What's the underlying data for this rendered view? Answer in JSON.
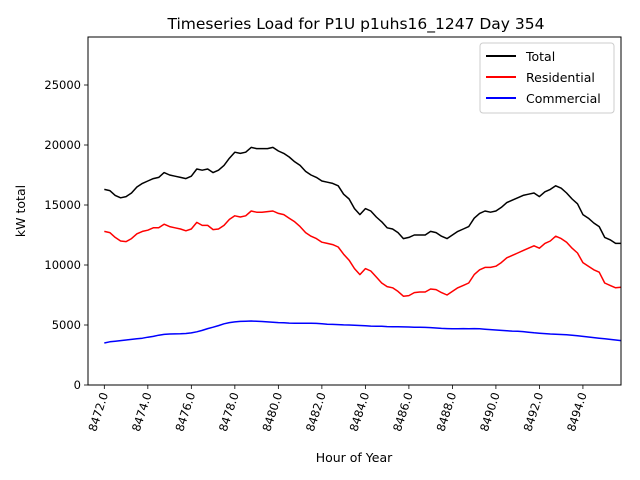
{
  "chart_data": {
    "type": "line",
    "title": "Timeseries Load for P1U p1uhs16_1247  Day 354",
    "xlabel": "Hour of Year",
    "ylabel": "kW total",
    "xlim": [
      8471.25,
      8495.75
    ],
    "ylim": [
      0,
      29000
    ],
    "x_ticks": [
      8472,
      8474,
      8476,
      8478,
      8480,
      8482,
      8484,
      8486,
      8488,
      8490,
      8492,
      8494
    ],
    "x_tick_labels": [
      "8472.0",
      "8474.0",
      "8476.0",
      "8478.0",
      "8480.0",
      "8482.0",
      "8484.0",
      "8486.0",
      "8488.0",
      "8490.0",
      "8492.0",
      "8494.0"
    ],
    "y_ticks": [
      0,
      5000,
      10000,
      15000,
      20000,
      25000
    ],
    "y_tick_labels": [
      "0",
      "5000",
      "10000",
      "15000",
      "20000",
      "25000"
    ],
    "grid": false,
    "legend_position": "top-right",
    "x": [
      8472.0,
      8472.25,
      8472.5,
      8472.75,
      8473.0,
      8473.25,
      8473.5,
      8473.75,
      8474.0,
      8474.25,
      8474.5,
      8474.75,
      8475.0,
      8475.25,
      8475.5,
      8475.75,
      8476.0,
      8476.25,
      8476.5,
      8476.75,
      8477.0,
      8477.25,
      8477.5,
      8477.75,
      8478.0,
      8478.25,
      8478.5,
      8478.75,
      8479.0,
      8479.25,
      8479.5,
      8479.75,
      8480.0,
      8480.25,
      8480.5,
      8480.75,
      8481.0,
      8481.25,
      8481.5,
      8481.75,
      8482.0,
      8482.25,
      8482.5,
      8482.75,
      8483.0,
      8483.25,
      8483.5,
      8483.75,
      8484.0,
      8484.25,
      8484.5,
      8484.75,
      8485.0,
      8485.25,
      8485.5,
      8485.75,
      8486.0,
      8486.25,
      8486.5,
      8486.75,
      8487.0,
      8487.25,
      8487.5,
      8487.75,
      8488.0,
      8488.25,
      8488.5,
      8488.75,
      8489.0,
      8489.25,
      8489.5,
      8489.75,
      8490.0,
      8490.25,
      8490.5,
      8490.75,
      8491.0,
      8491.25,
      8491.5,
      8491.75,
      8492.0,
      8492.25,
      8492.5,
      8492.75,
      8493.0,
      8493.25,
      8493.5,
      8493.75,
      8494.0,
      8494.25,
      8494.5,
      8494.75,
      8495.0,
      8495.25,
      8495.5,
      8495.75
    ],
    "series": [
      {
        "name": "Total",
        "color": "#000000",
        "values": [
          16300,
          16200,
          15800,
          15600,
          15700,
          16000,
          16500,
          16800,
          17000,
          17200,
          17300,
          17700,
          17500,
          17400,
          17300,
          17200,
          17400,
          18000,
          17900,
          18000,
          17700,
          17900,
          18300,
          18900,
          19400,
          19300,
          19400,
          19800,
          19700,
          19700,
          19700,
          19800,
          19500,
          19300,
          19000,
          18600,
          18300,
          17800,
          17500,
          17300,
          17000,
          16900,
          16800,
          16600,
          15900,
          15500,
          14700,
          14200,
          14700,
          14500,
          14000,
          13600,
          13100,
          13000,
          12700,
          12200,
          12300,
          12500,
          12500,
          12500,
          12800,
          12700,
          12400,
          12200,
          12500,
          12800,
          13000,
          13200,
          13900,
          14300,
          14500,
          14400,
          14500,
          14800,
          15200,
          15400,
          15600,
          15800,
          15900,
          16000,
          15700,
          16100,
          16300,
          16600,
          16400,
          16000,
          15500,
          15100,
          14200,
          13900,
          13500,
          13200,
          12300,
          12100,
          11800,
          11800
        ]
      },
      {
        "name": "Residential",
        "color": "#ff0000",
        "values": [
          12800,
          12700,
          12300,
          12000,
          11950,
          12200,
          12600,
          12800,
          12900,
          13100,
          13100,
          13400,
          13200,
          13100,
          13000,
          12850,
          13000,
          13550,
          13300,
          13300,
          12950,
          13000,
          13300,
          13800,
          14100,
          14000,
          14100,
          14500,
          14400,
          14400,
          14450,
          14500,
          14300,
          14200,
          13900,
          13600,
          13200,
          12700,
          12400,
          12200,
          11900,
          11800,
          11700,
          11500,
          10900,
          10400,
          9700,
          9200,
          9700,
          9500,
          9000,
          8500,
          8200,
          8100,
          7800,
          7400,
          7450,
          7700,
          7750,
          7750,
          8000,
          7950,
          7700,
          7500,
          7800,
          8100,
          8300,
          8500,
          9200,
          9600,
          9800,
          9800,
          9900,
          10200,
          10600,
          10800,
          11000,
          11200,
          11400,
          11600,
          11400,
          11800,
          12000,
          12400,
          12200,
          11900,
          11400,
          11000,
          10200,
          9900,
          9600,
          9400,
          8500,
          8300,
          8100,
          8150
        ]
      },
      {
        "name": "Commercial",
        "color": "#0000ff",
        "values": [
          3500,
          3600,
          3650,
          3700,
          3750,
          3800,
          3850,
          3900,
          3980,
          4050,
          4150,
          4220,
          4250,
          4260,
          4270,
          4290,
          4340,
          4430,
          4550,
          4700,
          4820,
          4950,
          5100,
          5200,
          5260,
          5300,
          5320,
          5330,
          5310,
          5290,
          5260,
          5230,
          5200,
          5180,
          5160,
          5150,
          5150,
          5150,
          5150,
          5130,
          5100,
          5070,
          5050,
          5030,
          5010,
          5000,
          4980,
          4960,
          4930,
          4910,
          4900,
          4890,
          4870,
          4860,
          4850,
          4840,
          4830,
          4820,
          4810,
          4800,
          4780,
          4750,
          4720,
          4700,
          4680,
          4690,
          4700,
          4690,
          4700,
          4680,
          4650,
          4620,
          4580,
          4550,
          4520,
          4490,
          4480,
          4450,
          4400,
          4350,
          4320,
          4280,
          4250,
          4230,
          4210,
          4180,
          4150,
          4100,
          4050,
          4000,
          3950,
          3900,
          3850,
          3800,
          3750,
          3700
        ]
      }
    ]
  }
}
